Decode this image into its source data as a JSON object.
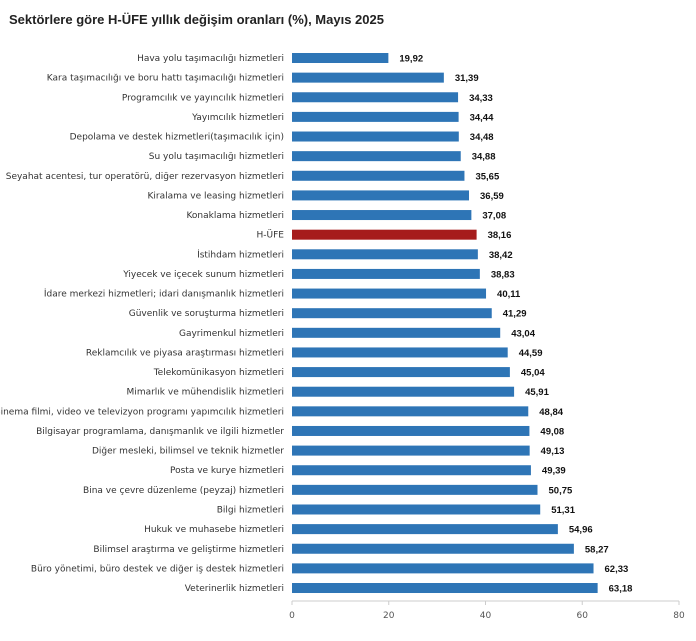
{
  "chart_data": {
    "type": "bar",
    "orientation": "horizontal",
    "title": "Sektörlere göre H-ÜFE yıllık değişim oranları (%), Mayıs 2025",
    "xlabel": "",
    "ylabel": "",
    "xlim": [
      0,
      80
    ],
    "xticks": [
      "0",
      "20",
      "40",
      "60",
      "80"
    ],
    "grid": false,
    "colors": {
      "bar": "#2e75b6",
      "highlight": "#a61c1c"
    },
    "highlight_category": "H-ÜFE",
    "categories": [
      "Hava yolu taşımacılığı hizmetleri",
      "Kara taşımacılığı ve boru hattı taşımacılığı hizmetleri",
      "Programcılık ve yayıncılık hizmetleri",
      "Yayımcılık hizmetleri",
      "Depolama ve destek hizmetleri(taşımacılık için)",
      "Su yolu taşımacılığı hizmetleri",
      "Seyahat acentesi, tur operatörü, diğer rezervasyon hizmetleri",
      "Kiralama ve leasing hizmetleri",
      "Konaklama hizmetleri",
      "H-ÜFE",
      "İstihdam hizmetleri",
      "Yiyecek ve içecek sunum hizmetleri",
      "İdare merkezi hizmetleri; idari danışmanlık hizmetleri",
      "Güvenlik ve soruşturma hizmetleri",
      "Gayrimenkul hizmetleri",
      "Reklamcılık ve piyasa araştırması hizmetleri",
      "Telekomünikasyon hizmetleri",
      "Mimarlık ve mühendislik hizmetleri",
      "Sinema filmi, video ve televizyon programı yapımcılık hizmetleri",
      "Bilgisayar programlama, danışmanlık ve ilgili hizmetler",
      "Diğer mesleki, bilimsel ve teknik hizmetler",
      "Posta ve kurye hizmetleri",
      "Bina ve çevre düzenleme (peyzaj) hizmetleri",
      "Bilgi hizmetleri",
      "Hukuk ve muhasebe hizmetleri",
      "Bilimsel araştırma ve geliştirme hizmetleri",
      "Büro yönetimi, büro destek ve diğer iş destek hizmetleri",
      "Veterinerlik hizmetleri"
    ],
    "values": [
      19.92,
      31.39,
      34.33,
      34.44,
      34.48,
      34.88,
      35.65,
      36.59,
      37.08,
      38.16,
      38.42,
      38.83,
      40.11,
      41.29,
      43.04,
      44.59,
      45.04,
      45.91,
      48.84,
      49.08,
      49.13,
      49.39,
      50.75,
      51.31,
      54.96,
      58.27,
      62.33,
      63.18
    ],
    "value_labels": [
      "19,92",
      "31,39",
      "34,33",
      "34,44",
      "34,48",
      "34,88",
      "35,65",
      "36,59",
      "37,08",
      "38,16",
      "38,42",
      "38,83",
      "40,11",
      "41,29",
      "43,04",
      "44,59",
      "45,04",
      "45,91",
      "48,84",
      "49,08",
      "49,13",
      "49,39",
      "50,75",
      "51,31",
      "54,96",
      "58,27",
      "62,33",
      "63,18"
    ]
  }
}
